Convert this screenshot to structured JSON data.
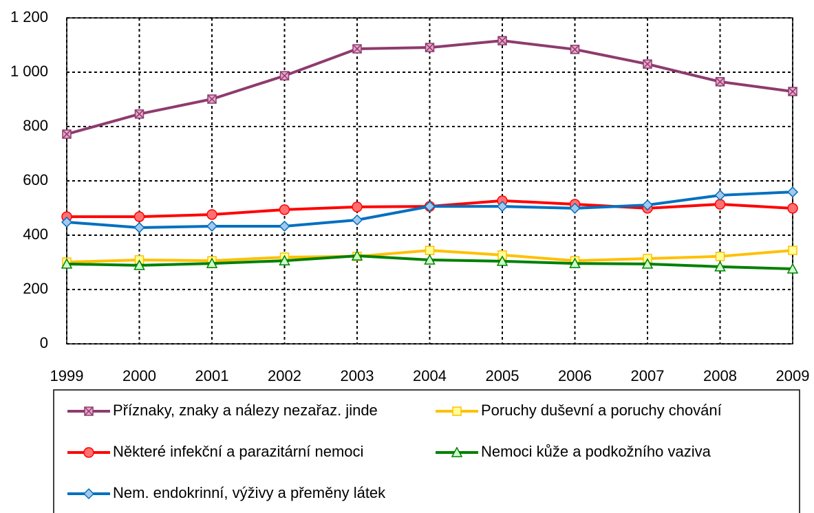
{
  "chart_data": {
    "type": "line",
    "categories": [
      "1999",
      "2000",
      "2001",
      "2002",
      "2003",
      "2004",
      "2005",
      "2006",
      "2007",
      "2008",
      "2009"
    ],
    "series": [
      {
        "name": "Příznaky, znaky a nálezy nezařaz. jinde",
        "color": "#8e3b6e",
        "marker": "xsquare",
        "marker_fill": "#e8a6c8",
        "values": [
          772,
          846,
          901,
          987,
          1086,
          1091,
          1116,
          1084,
          1030,
          965,
          929
        ]
      },
      {
        "name": "Některé infekční a parazitární nemoci",
        "color": "#ff0000",
        "marker": "circle",
        "marker_fill": "#ff7070",
        "values": [
          468,
          468,
          476,
          494,
          504,
          506,
          527,
          514,
          499,
          514,
          499
        ]
      },
      {
        "name": "Nem. endokrinní, výživy a přeměny látek",
        "color": "#0070c0",
        "marker": "diamond",
        "marker_fill": "#a4c8ec",
        "values": [
          448,
          428,
          433,
          433,
          456,
          506,
          506,
          499,
          511,
          547,
          559
        ]
      },
      {
        "name": "Poruchy duševní a poruchy chování",
        "color": "#ffc000",
        "marker": "square",
        "marker_fill": "#ffff99",
        "values": [
          301,
          309,
          306,
          319,
          322,
          344,
          327,
          306,
          314,
          322,
          344
        ]
      },
      {
        "name": "Nemoci kůže a podkožního vaziva",
        "color": "#008000",
        "marker": "triangle",
        "marker_fill": "#ccffcc",
        "values": [
          294,
          289,
          296,
          306,
          324,
          309,
          304,
          296,
          294,
          284,
          276
        ]
      }
    ],
    "ylim": [
      0,
      1200
    ],
    "yticks": [
      0,
      200,
      400,
      600,
      800,
      {
        "value": 1000,
        "label": "1 000"
      },
      {
        "value": 1200,
        "label": "1 200"
      }
    ],
    "grid": true
  }
}
